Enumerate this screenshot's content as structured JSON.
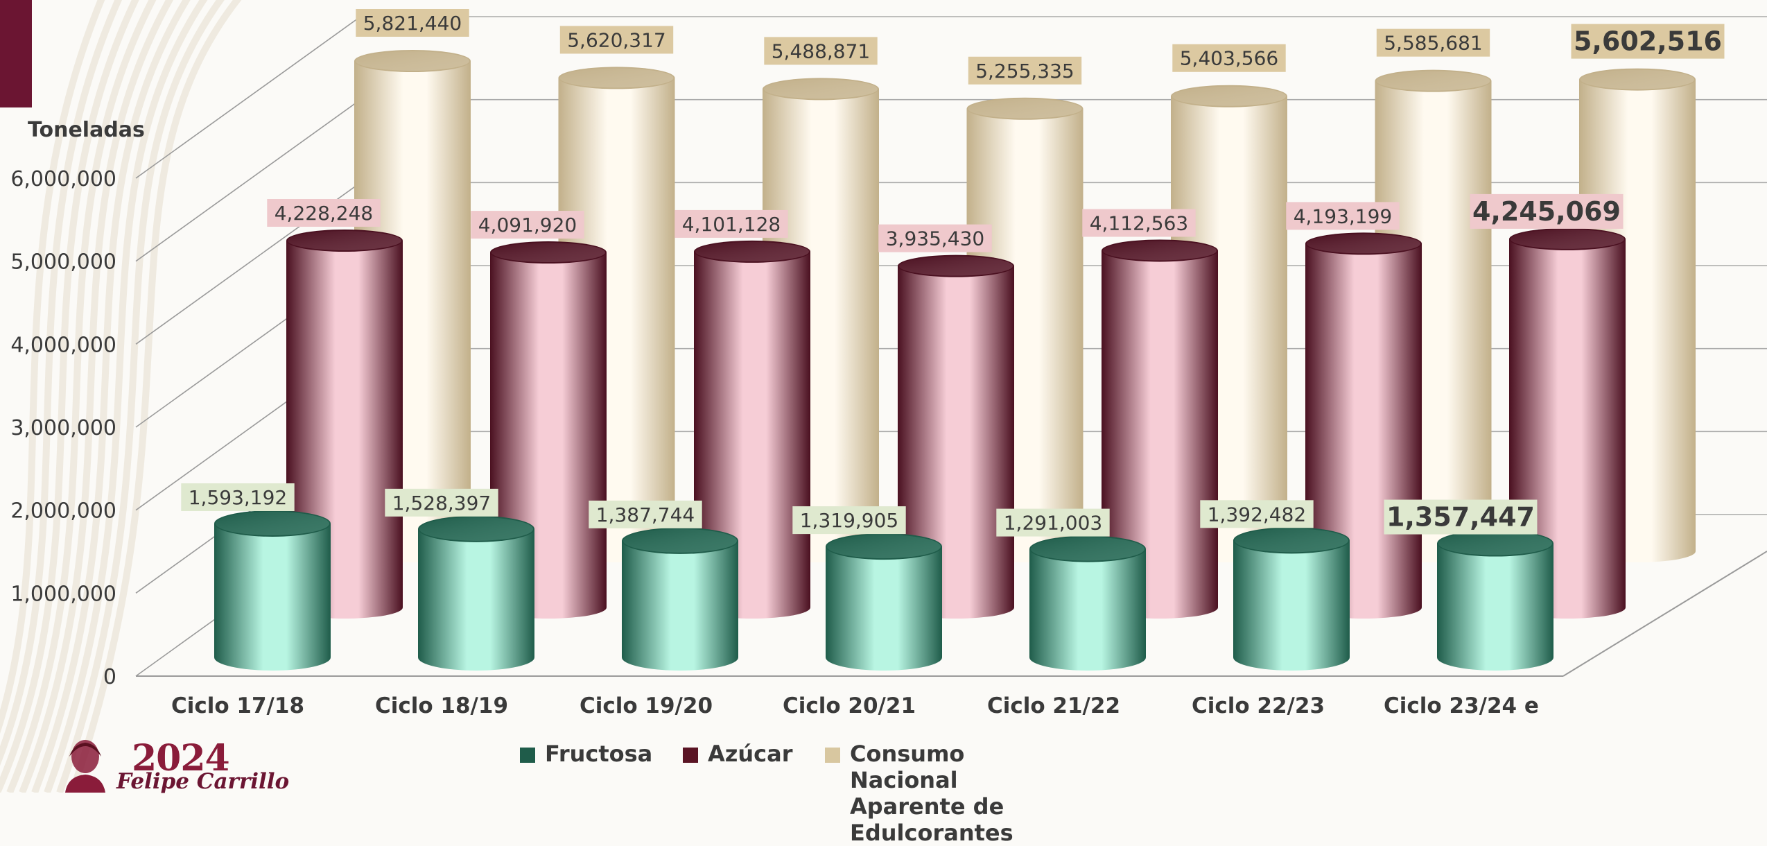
{
  "chart_data": {
    "type": "bar",
    "style": "3d-cylinder",
    "ylabel": "Toneladas",
    "ylim": [
      0,
      6000000
    ],
    "yticks": [
      "0",
      "1,000,000",
      "2,000,000",
      "3,000,000",
      "4,000,000",
      "5,000,000",
      "6,000,000"
    ],
    "grid": true,
    "legend_position": "bottom",
    "categories": [
      "Ciclo 17/18",
      "Ciclo 18/19",
      "Ciclo 19/20",
      "Ciclo 20/21",
      "Ciclo 21/22",
      "Ciclo 22/23",
      "Ciclo 23/24 e"
    ],
    "series": [
      {
        "name": "Fructosa",
        "values": [
          1593192,
          1528397,
          1387744,
          1319905,
          1291003,
          1392482,
          1357447
        ],
        "labels": [
          "1,593,192",
          "1,528,397",
          "1,387,744",
          "1,319,905",
          "1,291,003",
          "1,392,482",
          "1,357,447"
        ],
        "color": "#1f5c4a",
        "highlight": "#b8f5e2",
        "label_bg": "#dfe9cf"
      },
      {
        "name": "Azúcar",
        "values": [
          4228248,
          4091920,
          4101128,
          3935430,
          4112563,
          4193199,
          4245069
        ],
        "labels": [
          "4,228,248",
          "4,091,920",
          "4,101,128",
          "3,935,430",
          "4,112,563",
          "4,193,199",
          "4,245,069"
        ],
        "color": "#4a1020",
        "highlight": "#f6cdd6",
        "label_bg": "#efc9cc"
      },
      {
        "name": "Consumo Nacional\nAparente de Edulcorantes",
        "values": [
          5821440,
          5620317,
          5488871,
          5255335,
          5403566,
          5585681,
          5602516
        ],
        "labels": [
          "5,821,440",
          "5,620,317",
          "5,488,871",
          "5,255,335",
          "5,403,566",
          "5,585,681",
          "5,602,516"
        ],
        "color": "#c2b08a",
        "highlight": "#fffaf0",
        "label_bg": "#dcc9a1"
      }
    ]
  },
  "legend": {
    "items": [
      {
        "label": "Fructosa",
        "color": "#1f5c4a"
      },
      {
        "label": "Azúcar",
        "color": "#5a1424"
      },
      {
        "label": "Consumo Nacional\nAparente de Edulcorantes",
        "color": "#d8c7a0"
      }
    ]
  },
  "branding": {
    "year": "2024",
    "name": "Felipe Carrillo",
    "accent_color": "#6b1532"
  }
}
